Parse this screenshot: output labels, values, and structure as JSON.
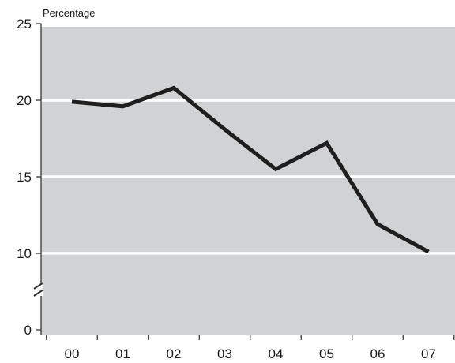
{
  "chart_data": {
    "type": "line",
    "ylabel": "Percentage",
    "x": [
      "00",
      "01",
      "02",
      "03",
      "04",
      "05",
      "06",
      "07"
    ],
    "series": [
      {
        "values": [
          19.9,
          19.6,
          20.8,
          18.1,
          15.5,
          17.2,
          11.9,
          10.1
        ]
      }
    ],
    "ylim": [
      0,
      25
    ],
    "yticks": [
      0,
      10,
      15,
      20,
      25
    ],
    "y_axis_break": true,
    "grid": true,
    "colors": {
      "plot_background": "#d1d2d4",
      "gridline": "#ffffff",
      "line": "#1e1e1e",
      "axis": "#333333"
    }
  }
}
